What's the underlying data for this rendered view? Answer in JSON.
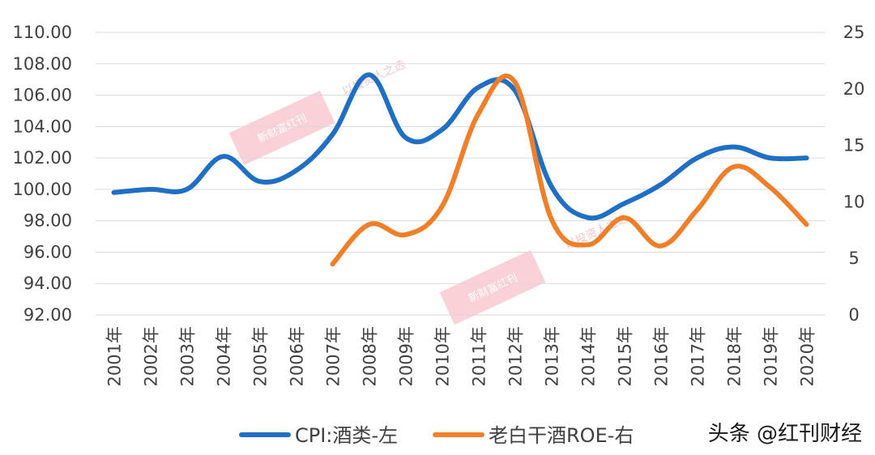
{
  "chart_data": {
    "type": "line",
    "categories": [
      "2001年",
      "2002年",
      "2003年",
      "2004年",
      "2005年",
      "2006年",
      "2007年",
      "2008年",
      "2009年",
      "2010年",
      "2011年",
      "2012年",
      "2013年",
      "2014年",
      "2015年",
      "2016年",
      "2017年",
      "2018年",
      "2019年",
      "2020年"
    ],
    "series": [
      {
        "name": "CPI:酒类-左",
        "axis": "left",
        "color": "#1f6fc5",
        "values": [
          99.8,
          100.0,
          100.0,
          102.1,
          100.5,
          101.2,
          103.5,
          107.3,
          103.3,
          103.8,
          106.5,
          106.3,
          100.2,
          98.2,
          99.1,
          100.3,
          102.0,
          102.7,
          102.0,
          102.0
        ]
      },
      {
        "name": "老白干酒ROE-右",
        "axis": "right",
        "color": "#f07f2a",
        "values": [
          null,
          null,
          null,
          null,
          null,
          null,
          4.5,
          8.0,
          7.1,
          9.6,
          17.8,
          20.6,
          8.5,
          6.2,
          8.6,
          6.1,
          9.3,
          13.1,
          11.3,
          8.0
        ]
      }
    ],
    "y_left": {
      "ylim": [
        92,
        110
      ],
      "ticks": [
        "110.00",
        "108.00",
        "106.00",
        "104.00",
        "102.00",
        "100.00",
        "98.00",
        "96.00",
        "94.00",
        "92.00"
      ]
    },
    "y_right": {
      "ylim": [
        0,
        25
      ],
      "ticks": [
        "25",
        "20",
        "15",
        "10",
        "5",
        "0"
      ]
    },
    "grid": true,
    "legend_position": "bottom"
  },
  "watermark": {
    "text": "头条 @红刊财经",
    "stamp_text": "新财富红刊",
    "faint_text": "以投资人之选"
  }
}
